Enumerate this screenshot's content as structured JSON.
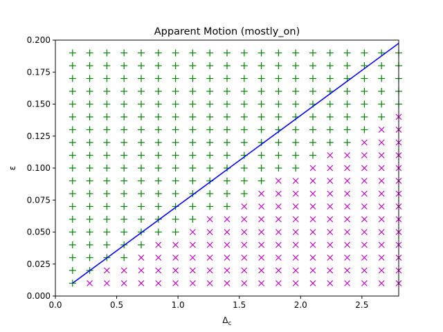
{
  "chart_data": {
    "type": "scatter",
    "title": "Apparent Motion (mostly_on)",
    "xlabel": "Δ",
    "xlabel_sub": "c",
    "ylabel": "ε",
    "xlim": [
      0,
      2.8
    ],
    "ylim": [
      0,
      0.2
    ],
    "x_ticks": [
      "0.0",
      "0.5",
      "1.0",
      "1.5",
      "2.0",
      "2.5"
    ],
    "y_ticks": [
      "0.000",
      "0.025",
      "0.050",
      "0.075",
      "0.100",
      "0.125",
      "0.150",
      "0.175",
      "0.200"
    ],
    "grid": false,
    "legend": "none",
    "grid_x": [
      0.14,
      0.28,
      0.42,
      0.56,
      0.7,
      0.84,
      0.98,
      1.12,
      1.26,
      1.4,
      1.54,
      1.68,
      1.82,
      1.96,
      2.1,
      2.24,
      2.38,
      2.52,
      2.66,
      2.8
    ],
    "grid_y": [
      0.01,
      0.02,
      0.03,
      0.04,
      0.05,
      0.06,
      0.07,
      0.08,
      0.09,
      0.1,
      0.11,
      0.12,
      0.13,
      0.14,
      0.15,
      0.16,
      0.17,
      0.18,
      0.19
    ],
    "cross_threshold_index": [
      1,
      2,
      4,
      5,
      7,
      8,
      10,
      11,
      12,
      14,
      15,
      17,
      18,
      19,
      20,
      20,
      20,
      20,
      20
    ],
    "plus_color": "#008000",
    "cross_color": "#bf00bf",
    "boundary_line": {
      "x": [
        0.14,
        2.8
      ],
      "y": [
        0.01,
        0.1975
      ],
      "color": "#0000ff"
    }
  }
}
